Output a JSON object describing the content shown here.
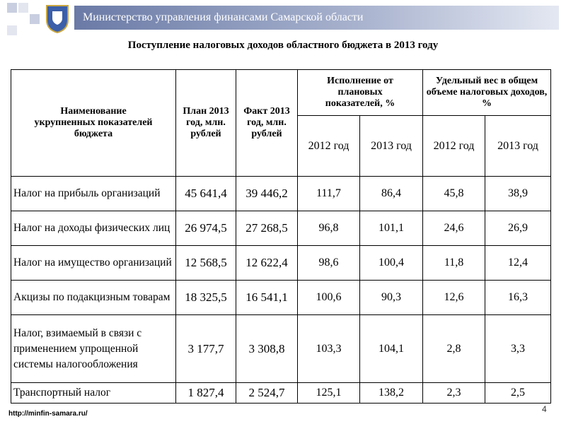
{
  "header": {
    "title": "Министерство управления финансами Самарской области"
  },
  "title": "Поступление налоговых доходов областного бюджета в 2013 году",
  "table": {
    "columns": [
      "Наименование укрупненных показателей бюджета",
      "План 2013 год, млн. рублей",
      "Факт 2013 год, млн. рублей"
    ],
    "groups": [
      {
        "label": "Исполнение от плановых показателей, %",
        "sub": [
          "2012 год",
          "2013 год"
        ]
      },
      {
        "label": "Удельный вес в общем объеме налоговых доходов, %",
        "sub": [
          "2012 год",
          "2013 год"
        ]
      }
    ],
    "rows": [
      [
        "Налог на прибыль организаций",
        "45 641,4",
        "39 446,2",
        "111,7",
        "86,4",
        "45,8",
        "38,9"
      ],
      [
        "Налог на доходы физических лиц",
        "26 974,5",
        "27 268,5",
        "96,8",
        "101,1",
        "24,6",
        "26,9"
      ],
      [
        "Налог на имущество организаций",
        "12 568,5",
        "12 622,4",
        "98,6",
        "100,4",
        "11,8",
        "12,4"
      ],
      [
        "Акцизы по подакцизным товарам",
        "18 325,5",
        "16 541,1",
        "100,6",
        "90,3",
        "12,6",
        "16,3"
      ],
      [
        "Налог, взимаемый в связи с применением упрощенной системы налогообложения",
        "3 177,7",
        "3 308,8",
        "103,3",
        "104,1",
        "2,8",
        "3,3"
      ],
      [
        "Транспортный налог",
        "1 827,4",
        "2 524,7",
        "125,1",
        "138,2",
        "2,3",
        "2,5"
      ]
    ]
  },
  "footer": {
    "url": "http://minfin-samara.ru/",
    "page": "4"
  }
}
